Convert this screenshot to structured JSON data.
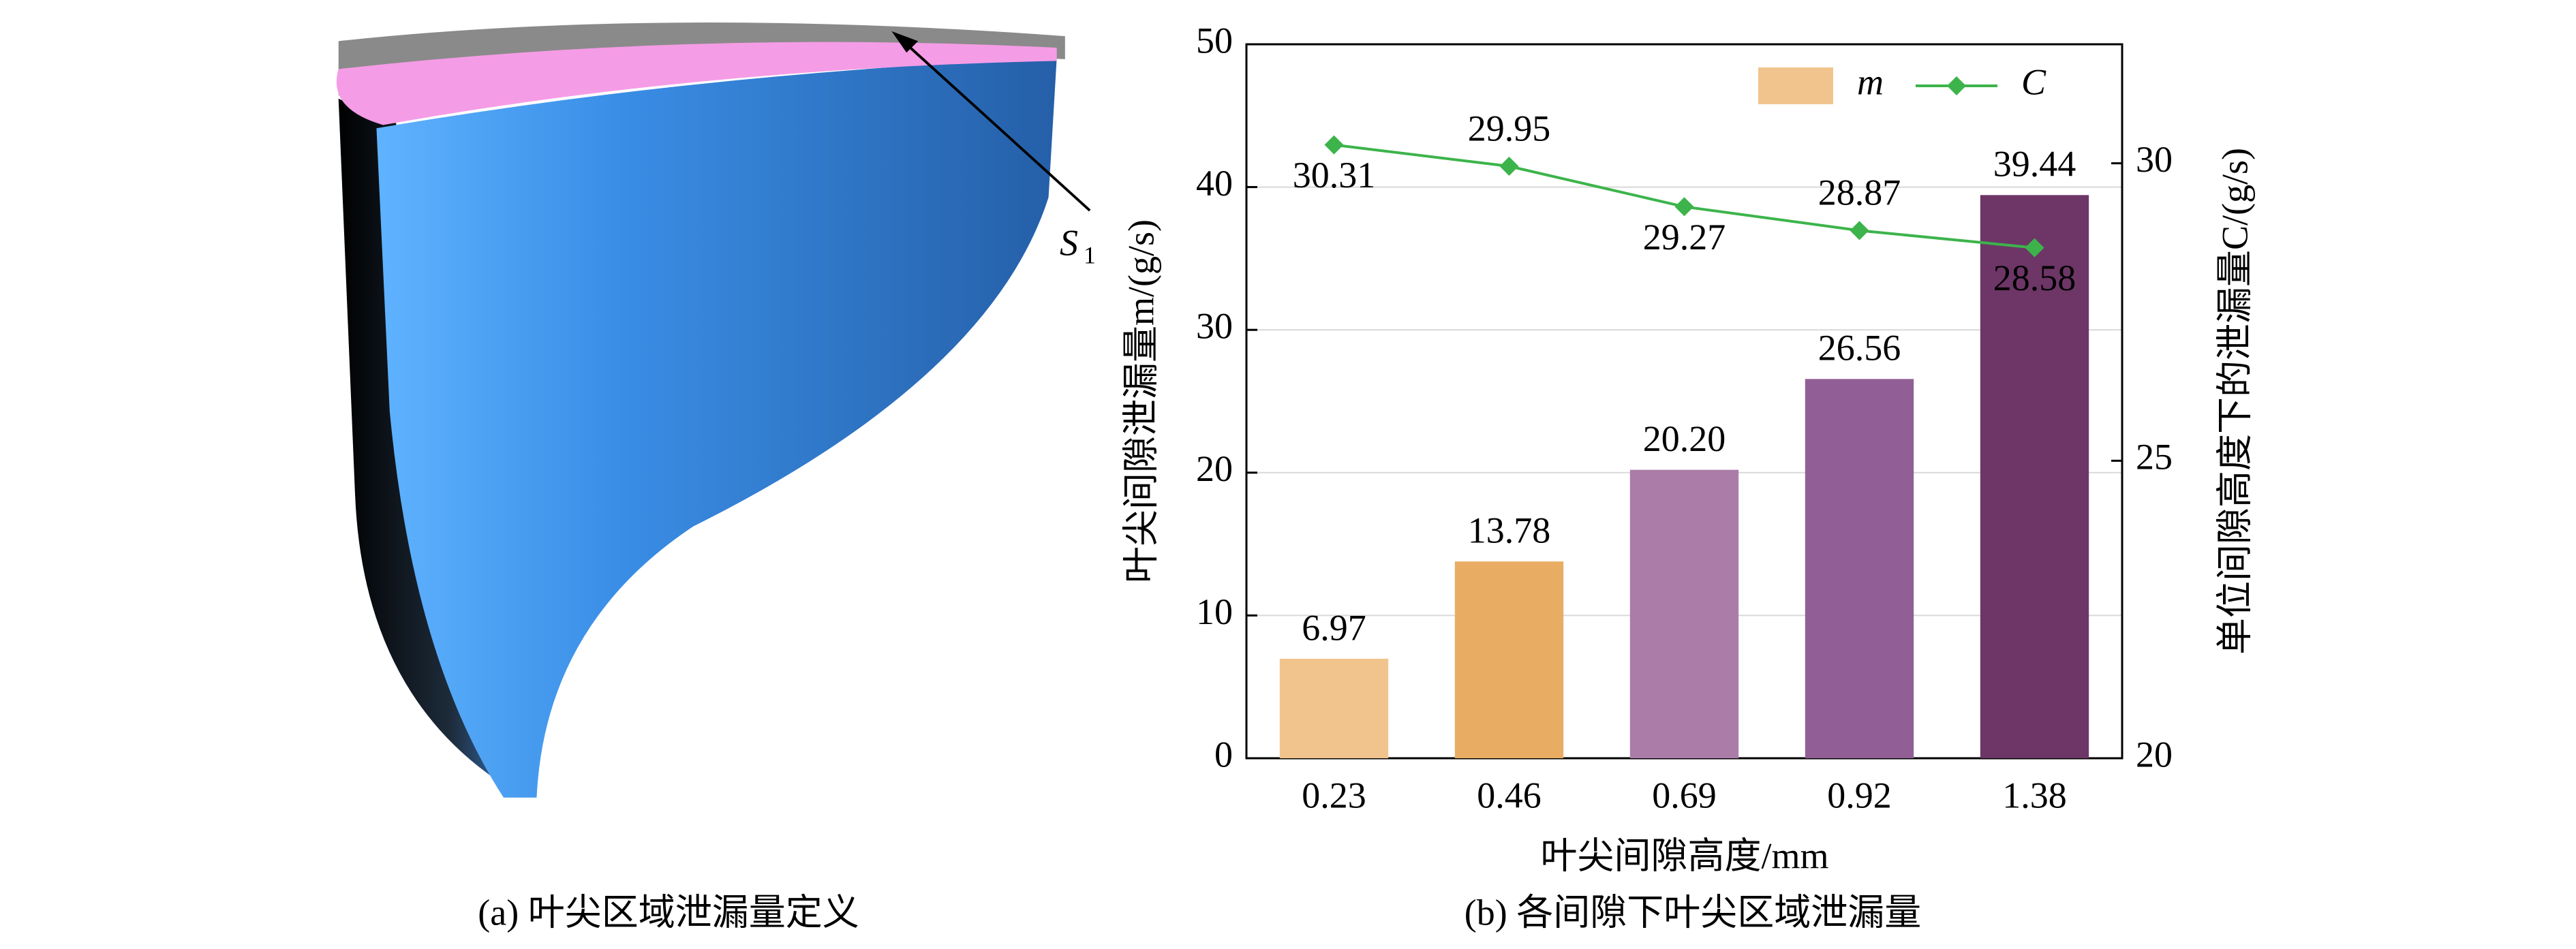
{
  "figure_a": {
    "caption": "(a) 叶尖区域泄漏量定义",
    "label": "S",
    "label_subscript": "1"
  },
  "chart_data": {
    "type": "bar_line",
    "title": "(b) 各间隙下叶尖区域泄漏量",
    "x_label": "叶尖间隙高度/mm",
    "y_label": "叶尖间隙泄漏量m/(g/s)",
    "y2_label": "单位间隙高度下的泄漏量C/(g/s)",
    "categories": [
      "0.23",
      "0.46",
      "0.69",
      "0.92",
      "1.38"
    ],
    "series": [
      {
        "name": "m",
        "type": "bar",
        "colors": [
          "#f2c48d",
          "#e8ad62",
          "#ab7ca8",
          "#915f95",
          "#6d3667"
        ],
        "color": "#f2c48d",
        "values": [
          6.97,
          13.78,
          20.2,
          26.56,
          39.44
        ],
        "value_labels": [
          "6.97",
          "13.78",
          "20.20",
          "26.56",
          "39.44"
        ]
      },
      {
        "name": "C",
        "type": "line",
        "axis": "y2",
        "color": "#3cb44b",
        "values": [
          30.31,
          29.95,
          29.27,
          28.87,
          28.58
        ]
      }
    ],
    "ylim": [
      0,
      50
    ],
    "yticks": [
      0,
      10,
      20,
      30,
      40,
      50
    ],
    "y2lim": [
      20,
      32
    ],
    "y2ticks": [
      20,
      25,
      30
    ],
    "grid": true,
    "legend": "top-right"
  }
}
